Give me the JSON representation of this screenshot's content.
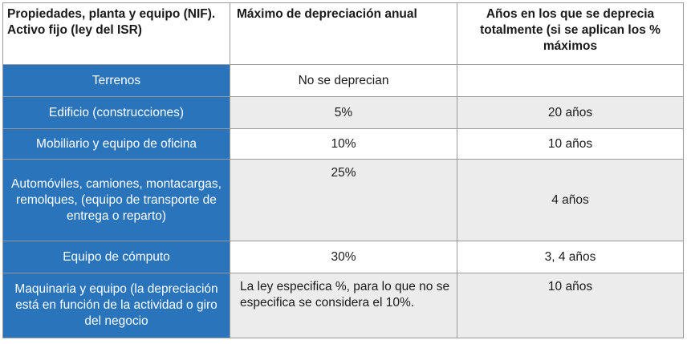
{
  "table": {
    "headers": [
      "Propiedades, planta y equipo (NIF). Activo fijo (ley del ISR)",
      "Máximo de depreciación anual",
      "Años en los que se deprecia totalmente (si se aplican los % máximos"
    ],
    "rows": [
      {
        "asset": "Terrenos",
        "max_rate": "No se deprecian",
        "years": ""
      },
      {
        "asset": "Edificio (construcciones)",
        "max_rate": "5%",
        "years": "20 años"
      },
      {
        "asset": "Mobiliario y equipo de oficina",
        "max_rate": "10%",
        "years": "10 años"
      },
      {
        "asset": "Automóviles, camiones, montacargas, remolques, (equipo de transporte de entrega o reparto)",
        "max_rate": "25%",
        "years": "4 años"
      },
      {
        "asset": "Equipo de cómputo",
        "max_rate": "30%",
        "years": "3, 4 años"
      },
      {
        "asset": "Maquinaria y equipo (la depreciación está en función de la actividad o giro del negocio",
        "max_rate": "La ley especifica %, para lo que no se especifica se considera el 10%.",
        "years": "10 años"
      }
    ]
  },
  "colors": {
    "label_bg": "#2a74bb",
    "label_text": "#ffffff",
    "alt_row_bg": "#ececec",
    "border": "#9a9a9a"
  }
}
